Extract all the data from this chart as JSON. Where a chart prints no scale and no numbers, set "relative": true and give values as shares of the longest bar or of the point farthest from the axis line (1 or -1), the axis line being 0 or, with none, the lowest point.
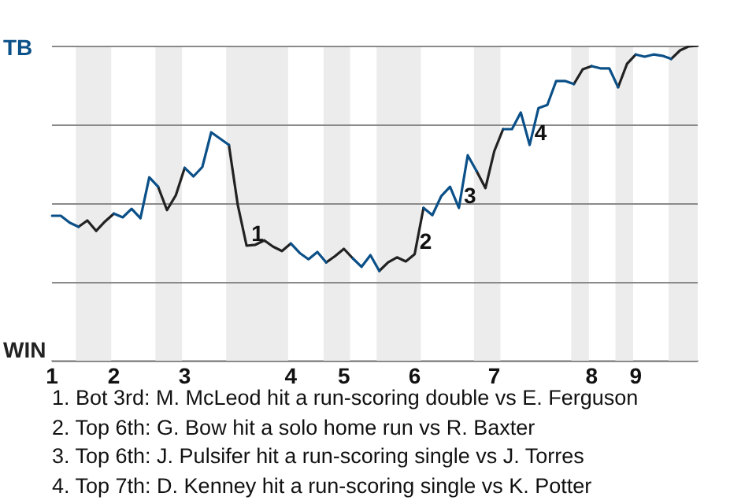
{
  "chart_data": {
    "type": "line",
    "relative": true,
    "categories": [
      "1",
      null,
      null,
      null,
      null,
      null,
      null,
      "2",
      null,
      null,
      null,
      null,
      null,
      null,
      null,
      "3",
      null,
      null,
      null,
      null,
      null,
      null,
      null,
      null,
      null,
      null,
      null,
      "4",
      null,
      null,
      null,
      null,
      null,
      "5",
      null,
      null,
      null,
      null,
      null,
      null,
      null,
      "6",
      null,
      null,
      null,
      null,
      null,
      null,
      null,
      null,
      "7",
      null,
      null,
      null,
      null,
      null,
      null,
      null,
      null,
      null,
      null,
      "8",
      null,
      null,
      null,
      null,
      "9",
      null,
      null,
      null,
      null,
      null,
      null,
      null
    ],
    "series": [
      {
        "color": "#0b5088",
        "values": [
          0.46,
          0.46,
          0.438,
          0.425,
          null,
          null,
          null,
          0.467,
          0.455,
          0.482,
          0.452,
          0.582,
          0.552,
          null,
          null,
          0.612,
          0.585,
          0.615,
          0.725,
          0.705,
          0.685,
          null,
          null,
          null,
          null,
          null,
          null,
          0.372,
          0.342,
          0.322,
          0.345,
          0.312,
          null,
          null,
          0.325,
          0.298,
          0.335,
          0.285,
          null,
          null,
          null,
          null,
          0.485,
          0.462,
          0.522,
          0.552,
          0.485,
          0.652,
          0.602,
          null,
          null,
          0.735,
          0.735,
          0.788,
          0.685,
          0.802,
          0.812,
          0.888,
          0.888,
          0.878,
          null,
          0.935,
          0.928,
          0.928,
          0.868,
          null,
          0.972,
          0.965,
          0.972,
          0.968,
          0.958,
          null,
          null,
          null
        ]
      },
      {
        "color": "#222222",
        "values": [
          null,
          null,
          null,
          0.425,
          0.445,
          0.412,
          0.442,
          0.467,
          null,
          null,
          null,
          null,
          0.552,
          0.478,
          0.525,
          0.612,
          null,
          null,
          null,
          null,
          0.685,
          0.495,
          0.365,
          0.368,
          0.382,
          0.362,
          0.348,
          0.372,
          null,
          null,
          null,
          0.312,
          0.332,
          0.355,
          0.325,
          null,
          null,
          0.285,
          0.312,
          0.328,
          0.315,
          0.338,
          0.485,
          null,
          null,
          null,
          null,
          null,
          0.602,
          0.548,
          0.665,
          0.735,
          null,
          null,
          null,
          null,
          null,
          null,
          null,
          0.878,
          0.925,
          0.935,
          null,
          null,
          0.868,
          0.942,
          0.972,
          null,
          null,
          null,
          0.958,
          0.985,
          0.998,
          1
        ]
      }
    ],
    "grid": "y",
    "legend": false,
    "marker": "none",
    "line_style": "solid",
    "annotations": [
      "TB",
      "WIN",
      "1",
      "2",
      "3",
      "4",
      "1. Bot 3rd: M. McLeod hit a run-scoring double vs E. Ferguson",
      "2. Top 6th: G. Bow hit a solo home run vs R. Baxter",
      "3. Top 6th: J. Pulsifer hit a run-scoring single vs J. Torres",
      "4. Top 7th: D. Kenney hit a run-scoring single vs K. Potter"
    ]
  }
}
